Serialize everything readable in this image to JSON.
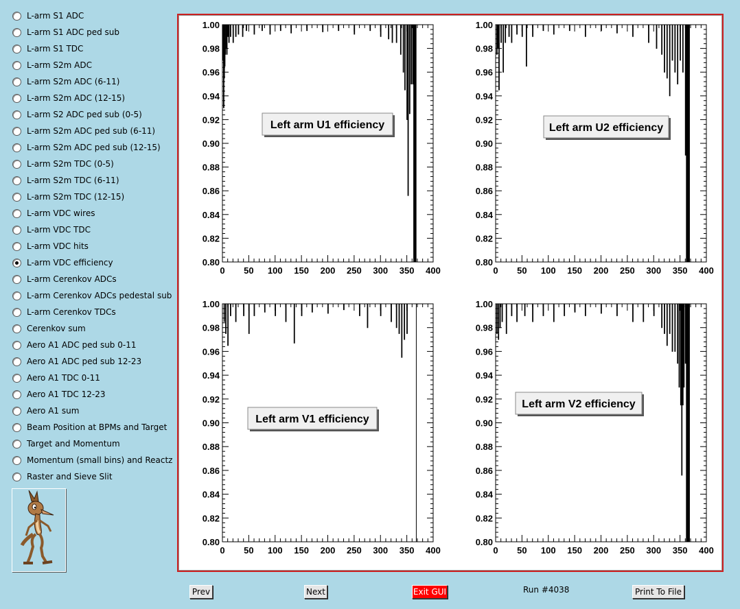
{
  "sidebar": {
    "items": [
      {
        "label": "L-arm S1 ADC",
        "checked": false
      },
      {
        "label": "L-arm S1 ADC ped sub",
        "checked": false
      },
      {
        "label": "L-arm S1 TDC",
        "checked": false
      },
      {
        "label": "L-arm S2m ADC",
        "checked": false
      },
      {
        "label": "L-arm S2m ADC (6-11)",
        "checked": false
      },
      {
        "label": "L-arm S2m ADC (12-15)",
        "checked": false
      },
      {
        "label": "L-arm S2 ADC ped sub (0-5)",
        "checked": false
      },
      {
        "label": "L-arm S2m ADC ped sub (6-11)",
        "checked": false
      },
      {
        "label": "L-arm S2m ADC ped sub (12-15)",
        "checked": false
      },
      {
        "label": "L-arm S2m TDC (0-5)",
        "checked": false
      },
      {
        "label": "L-arm S2m TDC (6-11)",
        "checked": false
      },
      {
        "label": "L-arm S2m TDC (12-15)",
        "checked": false
      },
      {
        "label": "L-arm VDC wires",
        "checked": false
      },
      {
        "label": "L-arm VDC TDC",
        "checked": false
      },
      {
        "label": "L-arm VDC hits",
        "checked": false
      },
      {
        "label": "L-arm VDC efficiency",
        "checked": true
      },
      {
        "label": "L-arm Cerenkov ADCs",
        "checked": false
      },
      {
        "label": "L-arm Cerenkov ADCs pedestal sub",
        "checked": false
      },
      {
        "label": "L-arm Cerenkov TDCs",
        "checked": false
      },
      {
        "label": "Cerenkov sum",
        "checked": false
      },
      {
        "label": "Aero A1 ADC ped sub 0-11",
        "checked": false
      },
      {
        "label": "Aero A1 ADC ped sub 12-23",
        "checked": false
      },
      {
        "label": "Aero A1 TDC 0-11",
        "checked": false
      },
      {
        "label": "Aero A1 TDC 12-23",
        "checked": false
      },
      {
        "label": "Aero A1 sum",
        "checked": false
      },
      {
        "label": "Beam Position at BPMs and Target",
        "checked": false
      },
      {
        "label": "Target and Momentum",
        "checked": false
      },
      {
        "label": "Momentum (small bins) and Reactz",
        "checked": false
      },
      {
        "label": "Raster and Sieve Slit",
        "checked": false
      }
    ]
  },
  "footer": {
    "prev_label": "Prev",
    "next_label": "Next",
    "exit_label": "Exit GUI",
    "run_label": "Run #4038",
    "print_label": "Print To File"
  },
  "colors": {
    "background": "#add8e6",
    "exit": "#ff0000",
    "frame": "#cc2020"
  },
  "chart_data": [
    {
      "type": "bar",
      "title": "Left arm U1 efficiency",
      "xlim": [
        0,
        400
      ],
      "ylim": [
        0.8,
        1.0
      ],
      "x_ticks": [
        0,
        50,
        100,
        150,
        200,
        250,
        300,
        350,
        400
      ],
      "y_ticks": [
        "0.80",
        "0.82",
        "0.84",
        "0.86",
        "0.88",
        "0.90",
        "0.92",
        "0.94",
        "0.96",
        "0.98",
        "1.00"
      ],
      "channels": 368,
      "dips": [
        [
          1,
          0.97
        ],
        [
          2,
          0.93
        ],
        [
          3,
          0.955
        ],
        [
          4,
          0.965
        ],
        [
          5,
          0.975
        ],
        [
          6,
          0.98
        ],
        [
          7,
          0.985
        ],
        [
          8,
          0.975
        ],
        [
          10,
          0.99
        ],
        [
          12,
          0.985
        ],
        [
          15,
          0.99
        ],
        [
          20,
          0.985
        ],
        [
          25,
          0.99
        ],
        [
          30,
          0.992
        ],
        [
          38,
          0.99
        ],
        [
          45,
          0.995
        ],
        [
          60,
          0.992
        ],
        [
          75,
          0.995
        ],
        [
          90,
          0.992
        ],
        [
          110,
          0.995
        ],
        [
          130,
          0.993
        ],
        [
          160,
          0.995
        ],
        [
          190,
          0.994
        ],
        [
          220,
          0.995
        ],
        [
          250,
          0.992
        ],
        [
          280,
          0.995
        ],
        [
          300,
          0.99
        ],
        [
          315,
          0.988
        ],
        [
          322,
          0.985
        ],
        [
          330,
          0.985
        ],
        [
          338,
          0.975
        ],
        [
          343,
          0.96
        ],
        [
          346,
          0.945
        ],
        [
          350,
          0.92
        ],
        [
          352,
          0.856
        ],
        [
          355,
          0.925
        ],
        [
          358,
          0.95
        ],
        [
          361,
          0.95
        ],
        [
          363,
          0.8
        ],
        [
          365,
          0.8
        ],
        [
          367,
          0.8
        ]
      ]
    },
    {
      "type": "bar",
      "title": "Left arm U2 efficiency",
      "xlim": [
        0,
        400
      ],
      "ylim": [
        0.8,
        1.0
      ],
      "x_ticks": [
        0,
        50,
        100,
        150,
        200,
        250,
        300,
        350,
        400
      ],
      "y_ticks": [
        "0.80",
        "0.82",
        "0.84",
        "0.86",
        "0.88",
        "0.90",
        "0.92",
        "0.94",
        "0.96",
        "0.98",
        "1.00"
      ],
      "channels": 368,
      "dips": [
        [
          2,
          0.975
        ],
        [
          4,
          0.98
        ],
        [
          6,
          0.945
        ],
        [
          10,
          0.985
        ],
        [
          14,
          0.96
        ],
        [
          18,
          0.985
        ],
        [
          25,
          0.99
        ],
        [
          30,
          0.985
        ],
        [
          40,
          0.992
        ],
        [
          50,
          0.99
        ],
        [
          58,
          0.965
        ],
        [
          70,
          0.99
        ],
        [
          90,
          0.995
        ],
        [
          110,
          0.992
        ],
        [
          140,
          0.995
        ],
        [
          170,
          0.99
        ],
        [
          200,
          0.995
        ],
        [
          230,
          0.993
        ],
        [
          260,
          0.99
        ],
        [
          290,
          0.985
        ],
        [
          305,
          0.98
        ],
        [
          315,
          0.975
        ],
        [
          320,
          0.96
        ],
        [
          325,
          0.955
        ],
        [
          330,
          0.94
        ],
        [
          335,
          0.97
        ],
        [
          340,
          0.96
        ],
        [
          345,
          0.95
        ],
        [
          350,
          0.97
        ],
        [
          355,
          0.96
        ],
        [
          360,
          0.89
        ],
        [
          362,
          0.8
        ],
        [
          364,
          0.8
        ],
        [
          366,
          0.8
        ]
      ]
    },
    {
      "type": "bar",
      "title": "Left arm V1 efficiency",
      "xlim": [
        0,
        400
      ],
      "ylim": [
        0.8,
        1.0
      ],
      "x_ticks": [
        0,
        50,
        100,
        150,
        200,
        250,
        300,
        350,
        400
      ],
      "y_ticks": [
        "0.80",
        "0.82",
        "0.84",
        "0.86",
        "0.88",
        "0.90",
        "0.92",
        "0.94",
        "0.96",
        "0.98",
        "1.00"
      ],
      "channels": 368,
      "dips": [
        [
          3,
          0.985
        ],
        [
          6,
          0.975
        ],
        [
          10,
          0.965
        ],
        [
          15,
          0.99
        ],
        [
          25,
          0.985
        ],
        [
          40,
          0.99
        ],
        [
          50,
          0.975
        ],
        [
          60,
          0.99
        ],
        [
          80,
          0.993
        ],
        [
          100,
          0.99
        ],
        [
          120,
          0.985
        ],
        [
          136,
          0.967
        ],
        [
          150,
          0.99
        ],
        [
          170,
          0.993
        ],
        [
          200,
          0.992
        ],
        [
          230,
          0.995
        ],
        [
          260,
          0.99
        ],
        [
          275,
          0.98
        ],
        [
          300,
          0.99
        ],
        [
          320,
          0.985
        ],
        [
          330,
          0.98
        ],
        [
          335,
          0.975
        ],
        [
          340,
          0.955
        ],
        [
          345,
          0.97
        ],
        [
          350,
          0.975
        ]
      ]
    },
    {
      "type": "bar",
      "title": "Left arm V2 efficiency",
      "xlim": [
        0,
        400
      ],
      "ylim": [
        0.8,
        1.0
      ],
      "x_ticks": [
        0,
        50,
        100,
        150,
        200,
        250,
        300,
        350,
        400
      ],
      "y_ticks": [
        "0.80",
        "0.82",
        "0.84",
        "0.86",
        "0.88",
        "0.90",
        "0.92",
        "0.94",
        "0.96",
        "0.98",
        "1.00"
      ],
      "channels": 368,
      "dips": [
        [
          2,
          0.975
        ],
        [
          5,
          0.97
        ],
        [
          8,
          0.98
        ],
        [
          12,
          0.985
        ],
        [
          20,
          0.975
        ],
        [
          30,
          0.99
        ],
        [
          40,
          0.985
        ],
        [
          55,
          0.99
        ],
        [
          70,
          0.985
        ],
        [
          90,
          0.99
        ],
        [
          110,
          0.985
        ],
        [
          130,
          0.99
        ],
        [
          150,
          0.993
        ],
        [
          170,
          0.99
        ],
        [
          200,
          0.992
        ],
        [
          230,
          0.99
        ],
        [
          260,
          0.985
        ],
        [
          280,
          0.985
        ],
        [
          300,
          0.99
        ],
        [
          315,
          0.98
        ],
        [
          320,
          0.975
        ],
        [
          325,
          0.965
        ],
        [
          330,
          0.975
        ],
        [
          335,
          0.96
        ],
        [
          340,
          0.96
        ],
        [
          345,
          0.95
        ],
        [
          348,
          0.93
        ],
        [
          351,
          0.915
        ],
        [
          353,
          0.856
        ],
        [
          355,
          0.915
        ],
        [
          357,
          0.93
        ],
        [
          360,
          0.95
        ],
        [
          362,
          0.8
        ],
        [
          364,
          0.8
        ],
        [
          366,
          0.8
        ]
      ]
    }
  ]
}
